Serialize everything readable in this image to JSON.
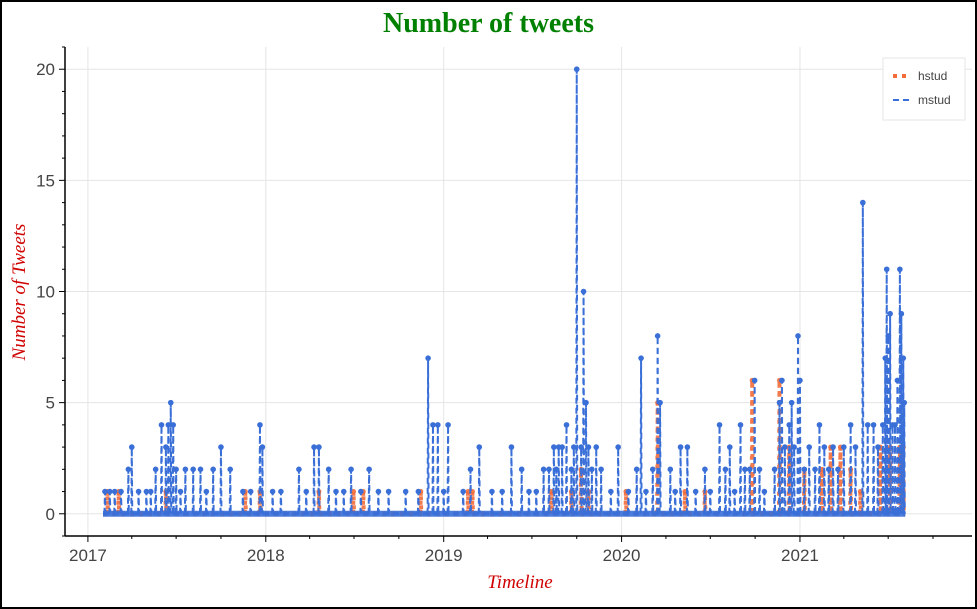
{
  "chart_data": {
    "type": "line",
    "title": "Number of tweets",
    "xlabel": "Timeline",
    "ylabel": "Number of Tweets",
    "x_ticks": [
      "2017",
      "2018",
      "2019",
      "2020",
      "2021"
    ],
    "y_ticks": [
      "0",
      "5",
      "10",
      "15",
      "20"
    ],
    "xlim": [
      "2016-11-15",
      "2021-12-20"
    ],
    "ylim": [
      -1,
      21
    ],
    "x_range": [
      "2017-02-01",
      "2021-08-05"
    ],
    "grid": true,
    "legend_position": "top-right",
    "series": [
      {
        "name": "hstud",
        "color": "#f26b3a",
        "style": "thick-dotted",
        "spikes": [
          [
            "2017-02-10",
            1
          ],
          [
            "2017-03-05",
            1
          ],
          [
            "2017-06-10",
            1
          ],
          [
            "2017-11-20",
            1
          ],
          [
            "2017-12-20",
            1
          ],
          [
            "2018-04-20",
            1
          ],
          [
            "2018-06-30",
            1
          ],
          [
            "2018-07-20",
            1
          ],
          [
            "2018-11-15",
            1
          ],
          [
            "2019-02-20",
            1
          ],
          [
            "2019-03-01",
            1
          ],
          [
            "2019-08-10",
            1
          ],
          [
            "2019-09-20",
            1
          ],
          [
            "2019-10-10",
            2
          ],
          [
            "2019-10-25",
            1
          ],
          [
            "2020-01-10",
            1
          ],
          [
            "2020-03-15",
            5
          ],
          [
            "2020-05-10",
            1
          ],
          [
            "2020-06-20",
            1
          ],
          [
            "2020-09-25",
            6
          ],
          [
            "2020-11-20",
            6
          ],
          [
            "2020-12-10",
            3
          ],
          [
            "2021-01-10",
            2
          ],
          [
            "2021-02-15",
            2
          ],
          [
            "2021-03-05",
            3
          ],
          [
            "2021-03-25",
            3
          ],
          [
            "2021-04-15",
            2
          ],
          [
            "2021-05-05",
            1
          ],
          [
            "2021-06-15",
            3
          ],
          [
            "2021-07-05",
            3
          ],
          [
            "2021-07-25",
            3
          ],
          [
            "2021-08-01",
            3
          ]
        ]
      },
      {
        "name": "mstud",
        "color": "#3a6fd8",
        "style": "dashed",
        "spikes": [
          [
            "2017-02-05",
            1
          ],
          [
            "2017-02-15",
            1
          ],
          [
            "2017-02-25",
            1
          ],
          [
            "2017-03-10",
            1
          ],
          [
            "2017-03-25",
            2
          ],
          [
            "2017-04-01",
            3
          ],
          [
            "2017-04-15",
            1
          ],
          [
            "2017-05-01",
            1
          ],
          [
            "2017-05-10",
            1
          ],
          [
            "2017-05-20",
            2
          ],
          [
            "2017-06-01",
            4
          ],
          [
            "2017-06-10",
            3
          ],
          [
            "2017-06-15",
            4
          ],
          [
            "2017-06-20",
            5
          ],
          [
            "2017-06-25",
            4
          ],
          [
            "2017-07-01",
            2
          ],
          [
            "2017-07-10",
            1
          ],
          [
            "2017-07-20",
            2
          ],
          [
            "2017-08-05",
            2
          ],
          [
            "2017-08-20",
            2
          ],
          [
            "2017-09-01",
            1
          ],
          [
            "2017-09-15",
            2
          ],
          [
            "2017-10-01",
            3
          ],
          [
            "2017-10-20",
            2
          ],
          [
            "2017-11-15",
            1
          ],
          [
            "2017-12-01",
            1
          ],
          [
            "2017-12-20",
            4
          ],
          [
            "2017-12-25",
            3
          ],
          [
            "2018-01-15",
            1
          ],
          [
            "2018-02-01",
            1
          ],
          [
            "2018-03-10",
            2
          ],
          [
            "2018-03-25",
            1
          ],
          [
            "2018-04-10",
            3
          ],
          [
            "2018-04-20",
            3
          ],
          [
            "2018-05-10",
            2
          ],
          [
            "2018-05-25",
            1
          ],
          [
            "2018-06-10",
            1
          ],
          [
            "2018-06-25",
            2
          ],
          [
            "2018-07-15",
            1
          ],
          [
            "2018-08-01",
            2
          ],
          [
            "2018-08-20",
            1
          ],
          [
            "2018-09-10",
            1
          ],
          [
            "2018-10-15",
            1
          ],
          [
            "2018-11-10",
            1
          ],
          [
            "2018-11-30",
            7
          ],
          [
            "2018-12-10",
            4
          ],
          [
            "2018-12-20",
            4
          ],
          [
            "2019-01-01",
            1
          ],
          [
            "2019-01-10",
            4
          ],
          [
            "2019-02-10",
            1
          ],
          [
            "2019-02-25",
            2
          ],
          [
            "2019-03-15",
            3
          ],
          [
            "2019-04-10",
            1
          ],
          [
            "2019-05-01",
            1
          ],
          [
            "2019-05-20",
            3
          ],
          [
            "2019-06-10",
            2
          ],
          [
            "2019-06-25",
            1
          ],
          [
            "2019-07-10",
            1
          ],
          [
            "2019-07-25",
            2
          ],
          [
            "2019-08-05",
            2
          ],
          [
            "2019-08-15",
            3
          ],
          [
            "2019-08-20",
            2
          ],
          [
            "2019-08-25",
            3
          ],
          [
            "2019-09-01",
            3
          ],
          [
            "2019-09-10",
            4
          ],
          [
            "2019-09-20",
            2
          ],
          [
            "2019-09-25",
            3
          ],
          [
            "2019-10-01",
            20
          ],
          [
            "2019-10-10",
            3
          ],
          [
            "2019-10-15",
            10
          ],
          [
            "2019-10-20",
            5
          ],
          [
            "2019-10-25",
            3
          ],
          [
            "2019-11-01",
            2
          ],
          [
            "2019-11-10",
            3
          ],
          [
            "2019-11-20",
            2
          ],
          [
            "2019-12-10",
            1
          ],
          [
            "2019-12-25",
            3
          ],
          [
            "2020-01-15",
            1
          ],
          [
            "2020-02-01",
            2
          ],
          [
            "2020-02-10",
            7
          ],
          [
            "2020-02-20",
            1
          ],
          [
            "2020-03-05",
            2
          ],
          [
            "2020-03-15",
            8
          ],
          [
            "2020-03-20",
            5
          ],
          [
            "2020-04-10",
            2
          ],
          [
            "2020-04-20",
            1
          ],
          [
            "2020-05-01",
            3
          ],
          [
            "2020-05-15",
            3
          ],
          [
            "2020-06-01",
            1
          ],
          [
            "2020-06-20",
            2
          ],
          [
            "2020-07-01",
            1
          ],
          [
            "2020-07-20",
            4
          ],
          [
            "2020-08-01",
            2
          ],
          [
            "2020-08-10",
            3
          ],
          [
            "2020-08-20",
            1
          ],
          [
            "2020-09-01",
            4
          ],
          [
            "2020-09-10",
            2
          ],
          [
            "2020-09-20",
            2
          ],
          [
            "2020-09-30",
            6
          ],
          [
            "2020-10-10",
            2
          ],
          [
            "2020-10-20",
            1
          ],
          [
            "2020-11-10",
            2
          ],
          [
            "2020-11-20",
            5
          ],
          [
            "2020-11-25",
            6
          ],
          [
            "2020-12-01",
            3
          ],
          [
            "2020-12-10",
            4
          ],
          [
            "2020-12-15",
            5
          ],
          [
            "2020-12-20",
            3
          ],
          [
            "2020-12-28",
            8
          ],
          [
            "2021-01-01",
            6
          ],
          [
            "2021-01-10",
            2
          ],
          [
            "2021-01-20",
            3
          ],
          [
            "2021-02-01",
            2
          ],
          [
            "2021-02-10",
            4
          ],
          [
            "2021-02-20",
            3
          ],
          [
            "2021-03-01",
            2
          ],
          [
            "2021-03-10",
            3
          ],
          [
            "2021-03-20",
            2
          ],
          [
            "2021-04-01",
            3
          ],
          [
            "2021-04-15",
            4
          ],
          [
            "2021-04-25",
            3
          ],
          [
            "2021-05-10",
            14
          ],
          [
            "2021-05-20",
            4
          ],
          [
            "2021-06-01",
            4
          ],
          [
            "2021-06-10",
            3
          ],
          [
            "2021-06-20",
            4
          ],
          [
            "2021-06-25",
            7
          ],
          [
            "2021-06-28",
            11
          ],
          [
            "2021-07-01",
            8
          ],
          [
            "2021-07-05",
            9
          ],
          [
            "2021-07-10",
            4
          ],
          [
            "2021-07-15",
            4
          ],
          [
            "2021-07-20",
            6
          ],
          [
            "2021-07-25",
            11
          ],
          [
            "2021-07-28",
            9
          ],
          [
            "2021-08-01",
            7
          ],
          [
            "2021-08-03",
            5
          ]
        ]
      }
    ]
  }
}
